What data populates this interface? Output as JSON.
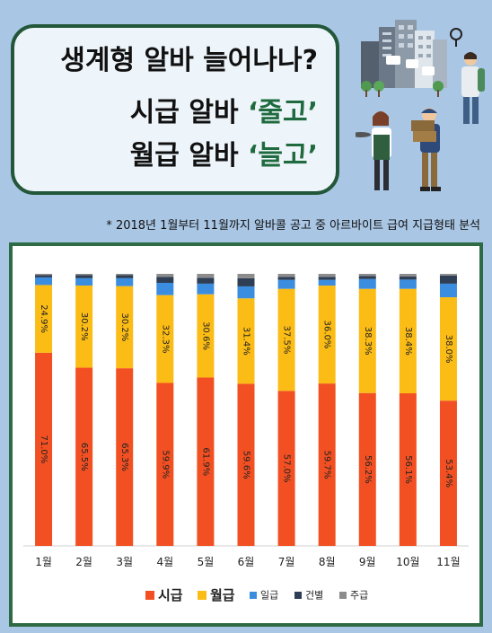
{
  "title": {
    "line1": "생계형 알바 늘어나나?",
    "line2_prefix": "시급 알바 ",
    "line2_highlight": "‘줄고’",
    "line3_prefix": "월급 알바 ",
    "line3_highlight": "‘늘고’"
  },
  "note": "* 2018년 1월부터 11월까지 알바콜 공고 중 아르바이트 급여 지급형태 분석",
  "colors": {
    "background": "#a9c6e4",
    "frame_green": "#2e6b45",
    "highlight_green": "#1f6b3f",
    "hourly": "#f25022",
    "monthly": "#fbbc16",
    "daily": "#3b8de0",
    "per_job": "#2e3e55",
    "weekly": "#8c8c8c"
  },
  "chart_data": {
    "type": "bar",
    "stacked": true,
    "categories": [
      "1월",
      "2월",
      "3월",
      "4월",
      "5월",
      "6월",
      "7월",
      "8월",
      "9월",
      "10월",
      "11월"
    ],
    "series": [
      {
        "name": "시급",
        "color": "#f25022",
        "values": [
          71.0,
          65.5,
          65.3,
          59.9,
          61.9,
          59.6,
          57.0,
          59.7,
          56.2,
          56.1,
          53.4
        ],
        "labels": [
          "71.0%",
          "65.5%",
          "65.3%",
          "59.9%",
          "61.9%",
          "59.6%",
          "57.0%",
          "59.7%",
          "56.2%",
          "56.1%",
          "53.4%"
        ]
      },
      {
        "name": "월급",
        "color": "#fbbc16",
        "values": [
          24.9,
          30.2,
          30.2,
          32.3,
          30.6,
          31.4,
          37.5,
          36.0,
          38.3,
          38.4,
          38.0
        ],
        "labels": [
          "24.9%",
          "30.2%",
          "30.2%",
          "32.3%",
          "30.6%",
          "31.4%",
          "37.5%",
          "36.0%",
          "38.3%",
          "38.4%",
          "38.0%"
        ]
      },
      {
        "name": "일급",
        "color": "#3b8de0",
        "values": [
          2.8,
          2.7,
          2.9,
          4.5,
          3.9,
          4.4,
          3.3,
          2.1,
          3.6,
          3.4,
          5.0
        ]
      },
      {
        "name": "건별",
        "color": "#2e3e55",
        "values": [
          0.8,
          1.1,
          1.1,
          2.2,
          2.1,
          3.0,
          1.1,
          1.1,
          1.1,
          1.1,
          3.0
        ]
      },
      {
        "name": "주급",
        "color": "#8c8c8c",
        "values": [
          0.5,
          0.5,
          0.5,
          1.1,
          1.5,
          1.6,
          1.1,
          1.1,
          0.8,
          1.0,
          0.6
        ]
      }
    ],
    "ylim": [
      0,
      100
    ],
    "legend": "bottom"
  }
}
